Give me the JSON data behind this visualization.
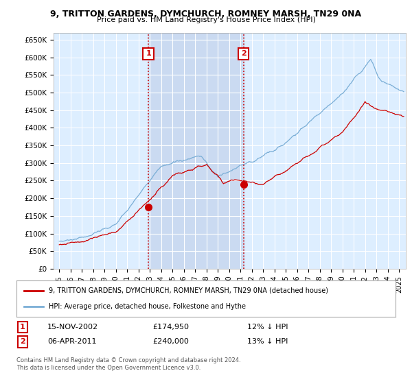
{
  "title": "9, TRITTON GARDENS, DYMCHURCH, ROMNEY MARSH, TN29 0NA",
  "subtitle": "Price paid vs. HM Land Registry's House Price Index (HPI)",
  "ylabel_ticks": [
    "£0",
    "£50K",
    "£100K",
    "£150K",
    "£200K",
    "£250K",
    "£300K",
    "£350K",
    "£400K",
    "£450K",
    "£500K",
    "£550K",
    "£600K",
    "£650K"
  ],
  "ytick_values": [
    0,
    50000,
    100000,
    150000,
    200000,
    250000,
    300000,
    350000,
    400000,
    450000,
    500000,
    550000,
    600000,
    650000
  ],
  "ylim": [
    0,
    670000
  ],
  "sale1_price": 174950,
  "sale1_date": "15-NOV-2002",
  "sale1_note": "12% ↓ HPI",
  "sale1_x": 2002.88,
  "sale2_price": 240000,
  "sale2_date": "06-APR-2011",
  "sale2_note": "13% ↓ HPI",
  "sale2_x": 2011.27,
  "line_color_house": "#cc0000",
  "line_color_hpi": "#7aaed6",
  "legend_house": "9, TRITTON GARDENS, DYMCHURCH, ROMNEY MARSH, TN29 0NA (detached house)",
  "legend_hpi": "HPI: Average price, detached house, Folkestone and Hythe",
  "footer1": "Contains HM Land Registry data © Crown copyright and database right 2024.",
  "footer2": "This data is licensed under the Open Government Licence v3.0.",
  "background_plot": "#ddeeff",
  "background_fig": "#ffffff",
  "grid_color": "#ffffff",
  "shade_color": "#c8d8f0",
  "dashed_line_color": "#cc0000",
  "xlim_left": 1994.5,
  "xlim_right": 2025.6
}
